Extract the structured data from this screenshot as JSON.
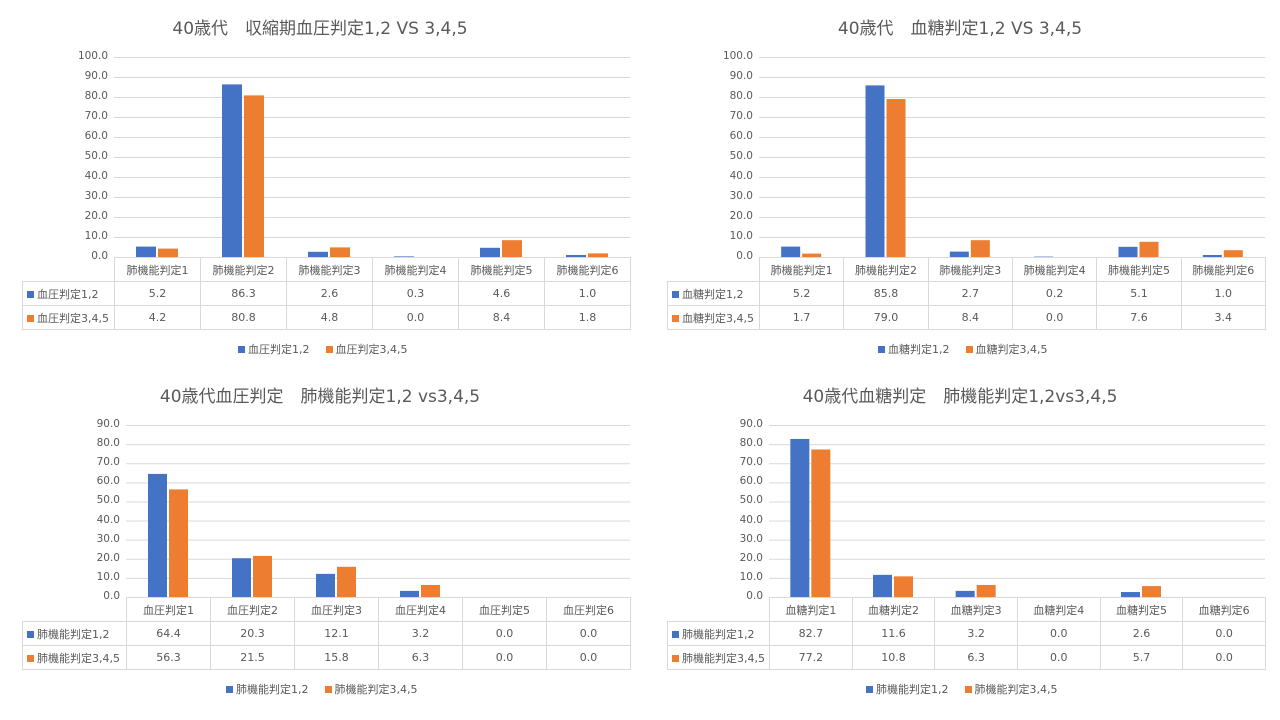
{
  "colors": {
    "series1": "#4472C4",
    "series2": "#ED7D31",
    "grid": "#d9d9d9"
  },
  "chart_data": [
    {
      "type": "bar",
      "title": "40歳代　収縮期血圧判定1,2 VS 3,4,5",
      "categories": [
        "肺機能判定1",
        "肺機能判定2",
        "肺機能判定3",
        "肺機能判定4",
        "肺機能判定5",
        "肺機能判定6"
      ],
      "yticks": [
        "100.0",
        "90.0",
        "80.0",
        "70.0",
        "60.0",
        "50.0",
        "40.0",
        "30.0",
        "20.0",
        "10.0",
        "0.0"
      ],
      "ylim": [
        0,
        100
      ],
      "grid": true,
      "legend": "bottom",
      "series": [
        {
          "name": "血圧判定1,2",
          "values": [
            5.2,
            86.3,
            2.6,
            0.3,
            4.6,
            1.0
          ],
          "labels": [
            "5.2",
            "86.3",
            "2.6",
            "0.3",
            "4.6",
            "1.0"
          ]
        },
        {
          "name": "血圧判定3,4,5",
          "values": [
            4.2,
            80.8,
            4.8,
            0.0,
            8.4,
            1.8
          ],
          "labels": [
            "4.2",
            "80.8",
            "4.8",
            "0.0",
            "8.4",
            "1.8"
          ]
        }
      ]
    },
    {
      "type": "bar",
      "title": "40歳代　血糖判定1,2 VS 3,4,5",
      "categories": [
        "肺機能判定1",
        "肺機能判定2",
        "肺機能判定3",
        "肺機能判定4",
        "肺機能判定5",
        "肺機能判定6"
      ],
      "yticks": [
        "100.0",
        "90.0",
        "80.0",
        "70.0",
        "60.0",
        "50.0",
        "40.0",
        "30.0",
        "20.0",
        "10.0",
        "0.0"
      ],
      "ylim": [
        0,
        100
      ],
      "grid": true,
      "legend": "bottom",
      "series": [
        {
          "name": "血糖判定1,2",
          "values": [
            5.2,
            85.8,
            2.7,
            0.2,
            5.1,
            1.0
          ],
          "labels": [
            "5.2",
            "85.8",
            "2.7",
            "0.2",
            "5.1",
            "1.0"
          ]
        },
        {
          "name": "血糖判定3,4,5",
          "values": [
            1.7,
            79.0,
            8.4,
            0.0,
            7.6,
            3.4
          ],
          "labels": [
            "1.7",
            "79.0",
            "8.4",
            "0.0",
            "7.6",
            "3.4"
          ]
        }
      ]
    },
    {
      "type": "bar",
      "title": "40歳代血圧判定　肺機能判定1,2 vs3,4,5",
      "categories": [
        "血圧判定1",
        "血圧判定2",
        "血圧判定3",
        "血圧判定4",
        "血圧判定5",
        "血圧判定6"
      ],
      "yticks": [
        "90.0",
        "80.0",
        "70.0",
        "60.0",
        "50.0",
        "40.0",
        "30.0",
        "20.0",
        "10.0",
        "0.0"
      ],
      "ylim": [
        0,
        90
      ],
      "grid": true,
      "legend": "bottom",
      "series": [
        {
          "name": "肺機能判定1,2",
          "values": [
            64.4,
            20.3,
            12.1,
            3.2,
            0.0,
            0.0
          ],
          "labels": [
            "64.4",
            "20.3",
            "12.1",
            "3.2",
            "0.0",
            "0.0"
          ]
        },
        {
          "name": "肺機能判定3,4,5",
          "values": [
            56.3,
            21.5,
            15.8,
            6.3,
            0.0,
            0.0
          ],
          "labels": [
            "56.3",
            "21.5",
            "15.8",
            "6.3",
            "0.0",
            "0.0"
          ]
        }
      ]
    },
    {
      "type": "bar",
      "title": "40歳代血糖判定　肺機能判定1,2vs3,4,5",
      "categories": [
        "血糖判定1",
        "血糖判定2",
        "血糖判定3",
        "血糖判定4",
        "血糖判定5",
        "血糖判定6"
      ],
      "yticks": [
        "90.0",
        "80.0",
        "70.0",
        "60.0",
        "50.0",
        "40.0",
        "30.0",
        "20.0",
        "10.0",
        "0.0"
      ],
      "ylim": [
        0,
        90
      ],
      "grid": true,
      "legend": "bottom",
      "series": [
        {
          "name": "肺機能判定1,2",
          "values": [
            82.7,
            11.6,
            3.2,
            0.0,
            2.6,
            0.0
          ],
          "labels": [
            "82.7",
            "11.6",
            "3.2",
            "0.0",
            "2.6",
            "0.0"
          ]
        },
        {
          "name": "肺機能判定3,4,5",
          "values": [
            77.2,
            10.8,
            6.3,
            0.0,
            5.7,
            0.0
          ],
          "labels": [
            "77.2",
            "10.8",
            "6.3",
            "0.0",
            "5.7",
            "0.0"
          ]
        }
      ]
    }
  ]
}
